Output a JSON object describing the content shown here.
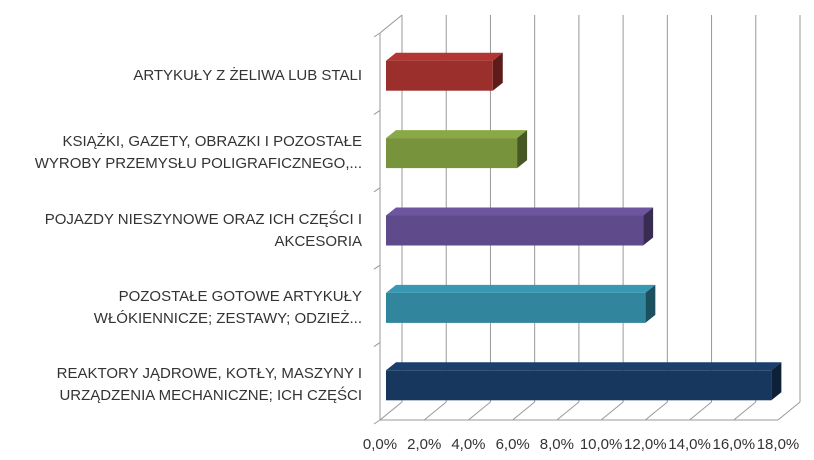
{
  "chart_data": {
    "type": "bar3d-horizontal",
    "categories": [
      "ARTYKUŁY Z ŻELIWA LUB STALI",
      "KSIĄŻKI, GAZETY, OBRAZKI I POZOSTAŁE WYROBY PRZEMYSŁU POLIGRAFICZNEGO,...",
      "POJAZDY NIESZYNOWE ORAZ ICH CZĘŚCI I AKCESORIA",
      "POZOSTAŁE GOTOWE ARTYKUŁY WŁÓKIENNICZE; ZESTAWY; ODZIEŻ...",
      "REAKTORY JĄDROWE, KOTŁY, MASZYNY I URZĄDZENIA MECHANICZNE; ICH CZĘŚCI"
    ],
    "values": [
      5.1,
      6.2,
      11.9,
      12.0,
      17.7
    ],
    "colors": [
      "#9b2f2c",
      "#77933c",
      "#5f4a8b",
      "#31859c",
      "#17375e"
    ],
    "xlim": [
      0,
      18
    ],
    "xticks": [
      {
        "value": 0,
        "label": "0,0%"
      },
      {
        "value": 2,
        "label": "2,0%"
      },
      {
        "value": 4,
        "label": "4,0%"
      },
      {
        "value": 6,
        "label": "6,0%"
      },
      {
        "value": 8,
        "label": "8,0%"
      },
      {
        "value": 10,
        "label": "10,0%"
      },
      {
        "value": 12,
        "label": "12,0%"
      },
      {
        "value": 14,
        "label": "14,0%"
      },
      {
        "value": 16,
        "label": "16,0%"
      },
      {
        "value": 18,
        "label": "18,0%"
      }
    ],
    "grid": true
  }
}
